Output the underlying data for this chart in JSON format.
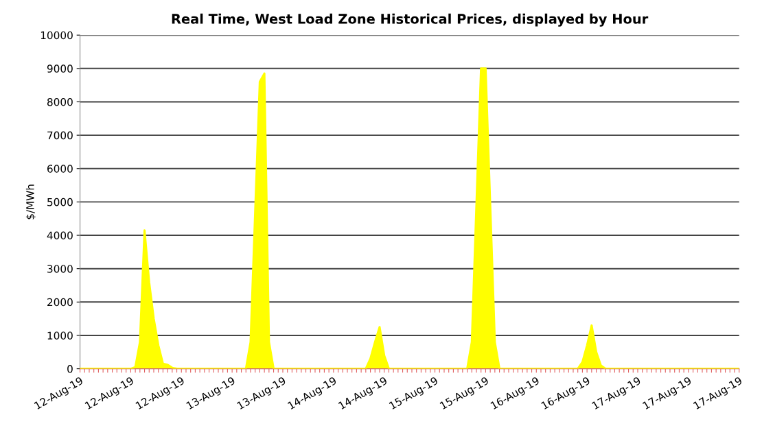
{
  "chart_data": {
    "type": "area",
    "title": "Real Time, West Load Zone Historical Prices, displayed by Hour",
    "ylabel": "$/MWh",
    "categories": [
      "12-Aug-19",
      null,
      null,
      null,
      null,
      null,
      null,
      null,
      null,
      null,
      null,
      "12-Aug-19",
      null,
      null,
      null,
      null,
      null,
      null,
      null,
      null,
      null,
      null,
      "12-Aug-19",
      null,
      null,
      null,
      null,
      null,
      null,
      null,
      null,
      null,
      null,
      "13-Aug-19",
      null,
      null,
      null,
      null,
      null,
      null,
      null,
      null,
      null,
      null,
      "13-Aug-19",
      null,
      null,
      null,
      null,
      null,
      null,
      null,
      null,
      null,
      null,
      "14-Aug-19",
      null,
      null,
      null,
      null,
      null,
      null,
      null,
      null,
      null,
      null,
      "14-Aug-19",
      null,
      null,
      null,
      null,
      null,
      null,
      null,
      null,
      null,
      null,
      "15-Aug-19",
      null,
      null,
      null,
      null,
      null,
      null,
      null,
      null,
      null,
      null,
      "15-Aug-19",
      null,
      null,
      null,
      null,
      null,
      null,
      null,
      null,
      null,
      null,
      "16-Aug-19",
      null,
      null,
      null,
      null,
      null,
      null,
      null,
      null,
      null,
      null,
      "16-Aug-19",
      null,
      null,
      null,
      null,
      null,
      null,
      null,
      null,
      null,
      null,
      "17-Aug-19",
      null,
      null,
      null,
      null,
      null,
      null,
      null,
      null,
      null,
      null,
      "17-Aug-19",
      null,
      null,
      null,
      null,
      null,
      null,
      null,
      null,
      null,
      null,
      "17-Aug-19"
    ],
    "series": [
      {
        "color": "#ffff00",
        "values": [
          0,
          0,
          0,
          0,
          0,
          0,
          0,
          0,
          0,
          0,
          0,
          0,
          50,
          800,
          4150,
          2600,
          1500,
          700,
          150,
          120,
          30,
          0,
          0,
          0,
          0,
          0,
          0,
          0,
          0,
          0,
          0,
          0,
          0,
          0,
          0,
          0,
          0,
          800,
          4700,
          8600,
          8850,
          800,
          0,
          0,
          0,
          0,
          0,
          0,
          0,
          0,
          0,
          0,
          0,
          0,
          0,
          0,
          0,
          0,
          0,
          0,
          0,
          0,
          0,
          300,
          800,
          1250,
          400,
          0,
          0,
          0,
          0,
          0,
          0,
          0,
          0,
          0,
          0,
          0,
          0,
          0,
          0,
          0,
          0,
          0,
          0,
          800,
          4900,
          9000,
          9000,
          4900,
          800,
          0,
          0,
          0,
          0,
          0,
          0,
          0,
          0,
          0,
          0,
          0,
          0,
          0,
          0,
          0,
          0,
          0,
          0,
          200,
          700,
          1300,
          500,
          100,
          0,
          0,
          0,
          0,
          0,
          0,
          0,
          0,
          0,
          0,
          0,
          0,
          0,
          0,
          0,
          0,
          0,
          0,
          0,
          0,
          0,
          0,
          0,
          0,
          0,
          0,
          0,
          0,
          0,
          0
        ]
      }
    ],
    "ylim": [
      0,
      10000
    ],
    "yticks": [
      0,
      1000,
      2000,
      3000,
      4000,
      5000,
      6000,
      7000,
      8000,
      9000,
      10000
    ],
    "grid": "y",
    "legend": false
  }
}
